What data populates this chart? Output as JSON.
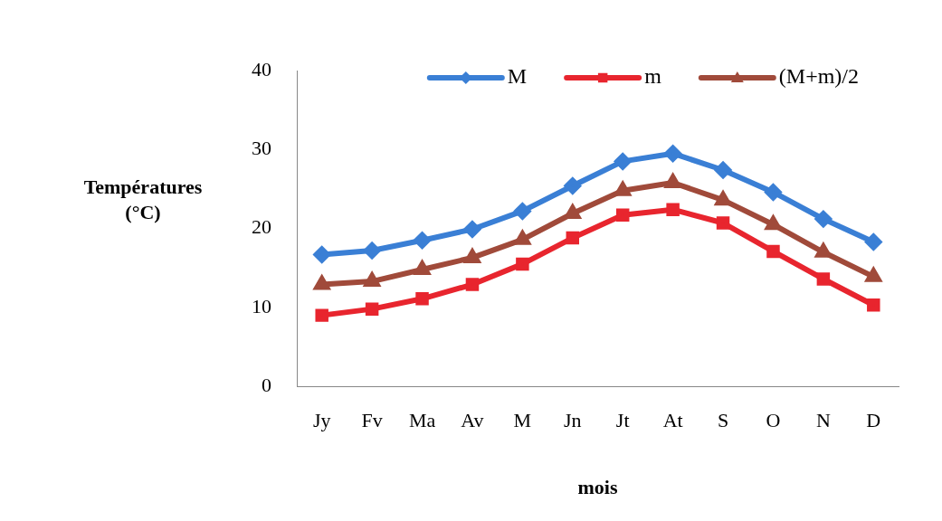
{
  "chart_data": {
    "type": "line",
    "xlabel": "mois",
    "ylabel": "Températures\n(°C)",
    "categories": [
      "Jy",
      "Fv",
      "Ma",
      "Av",
      "M",
      "Jn",
      "Jt",
      "At",
      "S",
      "O",
      "N",
      "D"
    ],
    "series": [
      {
        "name": "M",
        "color": "#3a7fd5",
        "marker": "diamond",
        "values": [
          16.7,
          17.2,
          18.5,
          19.9,
          22.2,
          25.4,
          28.5,
          29.5,
          27.4,
          24.6,
          21.2,
          18.3
        ]
      },
      {
        "name": "m",
        "color": "#e8252e",
        "marker": "square",
        "values": [
          9.0,
          9.8,
          11.1,
          12.9,
          15.5,
          18.8,
          21.7,
          22.4,
          20.7,
          17.1,
          13.6,
          10.3
        ]
      },
      {
        "name": "(M+m)/2",
        "color": "#a04a3a",
        "marker": "triangle",
        "values": [
          12.9,
          13.3,
          14.8,
          16.3,
          18.6,
          21.9,
          24.8,
          25.8,
          23.6,
          20.5,
          17.0,
          13.9
        ]
      }
    ],
    "ylim": [
      0,
      40
    ],
    "yticks": [
      0,
      10,
      20,
      30,
      40
    ],
    "grid": false,
    "legend": "top right"
  }
}
